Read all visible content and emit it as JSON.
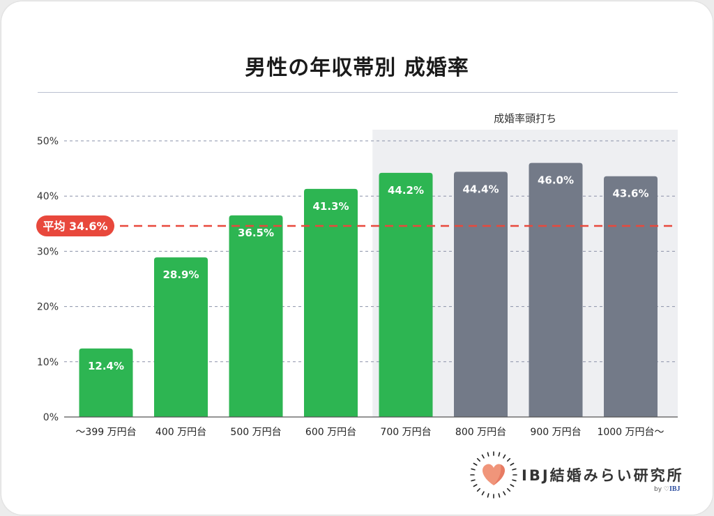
{
  "chart_data": {
    "type": "bar",
    "title": "男性の年収帯別 成婚率",
    "categories": [
      "～399 万円台",
      "400 万円台",
      "500 万円台",
      "600 万円台",
      "700 万円台",
      "800 万円台",
      "900 万円台",
      "1000 万円台～"
    ],
    "values": [
      12.4,
      28.9,
      36.5,
      41.3,
      44.2,
      44.4,
      46.0,
      43.6
    ],
    "value_labels": [
      "12.4%",
      "28.9%",
      "36.5%",
      "41.3%",
      "44.2%",
      "44.4%",
      "46.0%",
      "43.6%"
    ],
    "ylim": [
      0,
      50
    ],
    "yticks": [
      0,
      10,
      20,
      30,
      40,
      50
    ],
    "ytick_labels": [
      "0%",
      "10%",
      "20%",
      "30%",
      "40%",
      "50%"
    ],
    "grid": true,
    "average": {
      "value": 34.6,
      "label": "平均 34.6%"
    },
    "highlight": {
      "label": "成婚率頭打ち",
      "from_category": "700 万円台",
      "to_category": "1000 万円台～"
    },
    "colors": {
      "green": "#2db552",
      "gray": "#737a88",
      "average_line": "#e8483c",
      "highlight_bg": "#eeeff2",
      "grid": "#8a90a8"
    },
    "bar_colors": [
      "green",
      "green",
      "green",
      "green",
      "green",
      "gray",
      "gray",
      "gray"
    ]
  },
  "brand": {
    "name": "IBJ結婚みらい研究所",
    "sub_prefix": "by",
    "sub_brand": "IBJ",
    "icon": "heart-icon"
  }
}
